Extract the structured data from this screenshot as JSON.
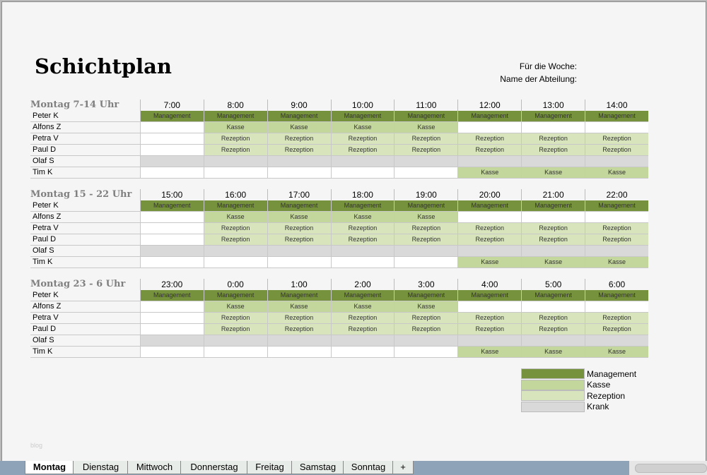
{
  "title": "Schichtplan",
  "meta": {
    "week_label": "Für die Woche:",
    "dept_label": "Name der Abteilung:"
  },
  "colors": {
    "Management": "#76923c",
    "Kasse": "#c3d69b",
    "Rezeption": "#d7e4bc",
    "Krank": "#d9d9d9"
  },
  "sections": [
    {
      "title": "Montag 7-14 Uhr",
      "times": [
        "7:00",
        "8:00",
        "9:00",
        "10:00",
        "11:00",
        "12:00",
        "13:00",
        "14:00"
      ]
    },
    {
      "title": "Montag 15 - 22 Uhr",
      "times": [
        "15:00",
        "16:00",
        "17:00",
        "18:00",
        "19:00",
        "20:00",
        "21:00",
        "22:00"
      ]
    },
    {
      "title": "Montag 23 - 6 Uhr",
      "times": [
        "23:00",
        "0:00",
        "1:00",
        "2:00",
        "3:00",
        "4:00",
        "5:00",
        "6:00"
      ]
    }
  ],
  "rows": [
    {
      "name": "Peter K",
      "cells": [
        "Management",
        "Management",
        "Management",
        "Management",
        "Management",
        "Management",
        "Management",
        "Management"
      ]
    },
    {
      "name": "Alfons Z",
      "cells": [
        "",
        "Kasse",
        "Kasse",
        "Kasse",
        "Kasse",
        "",
        "",
        ""
      ]
    },
    {
      "name": "Petra V",
      "cells": [
        "",
        "Rezeption",
        "Rezeption",
        "Rezeption",
        "Rezeption",
        "Rezeption",
        "Rezeption",
        "Rezeption"
      ]
    },
    {
      "name": "Paul D",
      "cells": [
        "",
        "Rezeption",
        "Rezeption",
        "Rezeption",
        "Rezeption",
        "Rezeption",
        "Rezeption",
        "Rezeption"
      ]
    },
    {
      "name": "Olaf S",
      "cells": [
        "Krank",
        "Krank",
        "Krank",
        "Krank",
        "Krank",
        "Krank",
        "Krank",
        "Krank"
      ]
    },
    {
      "name": "Tim K",
      "cells": [
        "",
        "",
        "",
        "",
        "",
        "Kasse",
        "Kasse",
        "Kasse"
      ]
    }
  ],
  "legend": [
    "Management",
    "Kasse",
    "Rezeption",
    "Krank"
  ],
  "watermark": "blog",
  "tabs": [
    "Montag",
    "Dienstag",
    "Mittwoch",
    "Donnerstag",
    "Freitag",
    "Samstag",
    "Sonntag",
    "+"
  ],
  "active_tab": "Montag"
}
